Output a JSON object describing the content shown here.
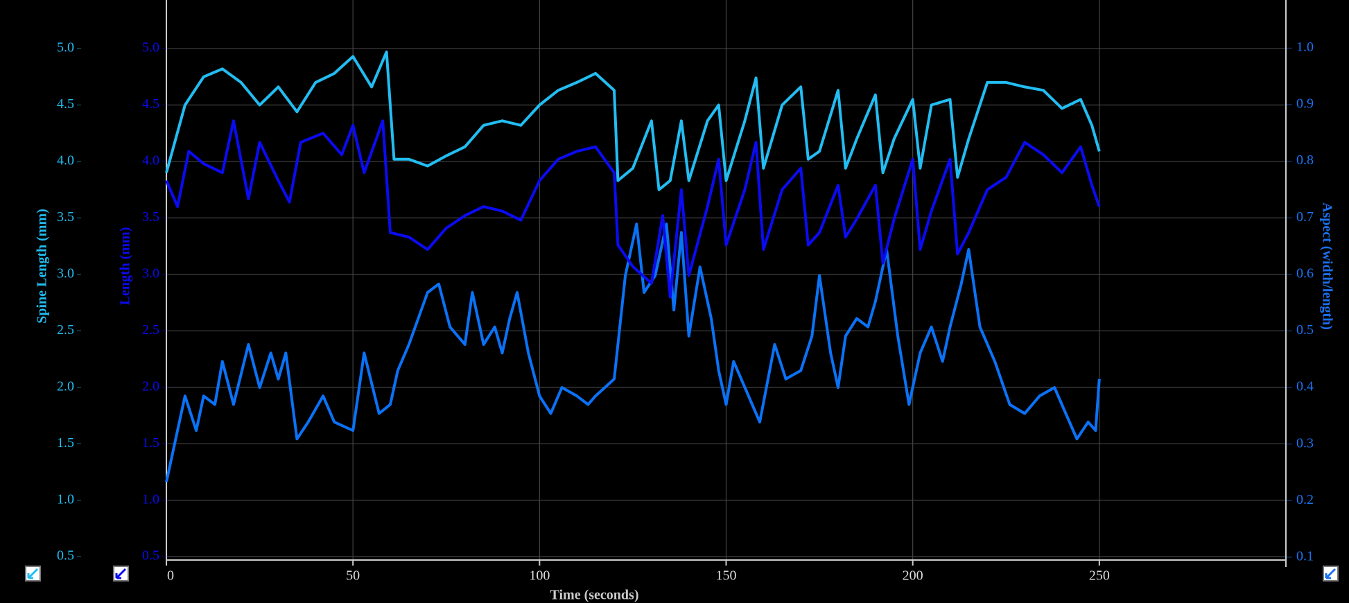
{
  "chart_data": {
    "type": "line",
    "xlabel": "Time (seconds)",
    "xlim": [
      0,
      300
    ],
    "xticks": [
      0,
      50,
      100,
      150,
      200,
      250
    ],
    "ylabel": "Spine Length (mm)",
    "ycolor": "#22bdf2",
    "ylim": [
      0.47,
      5.43
    ],
    "yticks": [
      0.5,
      {
        "value": 1.0,
        "label": "1.0"
      },
      1.5,
      {
        "value": 2.0,
        "label": "2.0"
      },
      2.5,
      {
        "value": 3.0,
        "label": "3.0"
      },
      3.5,
      {
        "value": 4.0,
        "label": "4.0"
      },
      4.5,
      {
        "value": 5.0,
        "label": "5.0"
      }
    ],
    "y3label": "Length (mm)",
    "y3color": "#0b0bf2",
    "y3lim": [
      0.47,
      5.43
    ],
    "y3ticks": [
      0.5,
      {
        "value": 1.0,
        "label": "1.0"
      },
      1.5,
      {
        "value": 2.0,
        "label": "2.0"
      },
      2.5,
      {
        "value": 3.0,
        "label": "3.0"
      },
      3.5,
      {
        "value": 4.0,
        "label": "4.0"
      },
      4.5,
      {
        "value": 5.0,
        "label": "5.0"
      }
    ],
    "y2label": "Aspect (width/length)",
    "y2color": "#1a72f2",
    "y2lim": [
      0.095,
      1.085
    ],
    "y2ticks": [
      0.1,
      0.2,
      0.3,
      0.4,
      0.5,
      0.6,
      0.7,
      0.8,
      0.9,
      {
        "value": 1.0,
        "label": "1.0"
      }
    ],
    "grid": true,
    "series": [
      {
        "axis": "y2",
        "color": "#0a72f7",
        "x": [
          0,
          3,
          5,
          8,
          10,
          13,
          15,
          18,
          22,
          25,
          28,
          30,
          32,
          35,
          38,
          42,
          45,
          50,
          53,
          57,
          60,
          62,
          65,
          70,
          73,
          76,
          80,
          82,
          85,
          88,
          90,
          92,
          94,
          97,
          100,
          103,
          106,
          110,
          113,
          115,
          120,
          123,
          126,
          128,
          131,
          134,
          136,
          138,
          140,
          143,
          146,
          148,
          150,
          152,
          156,
          159,
          163,
          166,
          170,
          173,
          175,
          178,
          180,
          182,
          185,
          188,
          190,
          193,
          196,
          199,
          202,
          205,
          208,
          210,
          213,
          215,
          218,
          222,
          226,
          230,
          234,
          238,
          241,
          244,
          247,
          249,
          250
        ],
        "values": [
          0.233,
          0.324,
          0.385,
          0.324,
          0.385,
          0.37,
          0.446,
          0.37,
          0.476,
          0.4,
          0.461,
          0.415,
          0.461,
          0.309,
          0.339,
          0.385,
          0.339,
          0.324,
          0.461,
          0.354,
          0.37,
          0.43,
          0.476,
          0.568,
          0.583,
          0.507,
          0.476,
          0.568,
          0.476,
          0.507,
          0.461,
          0.522,
          0.568,
          0.461,
          0.385,
          0.354,
          0.4,
          0.385,
          0.37,
          0.385,
          0.415,
          0.598,
          0.689,
          0.568,
          0.598,
          0.689,
          0.537,
          0.674,
          0.491,
          0.613,
          0.522,
          0.43,
          0.37,
          0.446,
          0.385,
          0.339,
          0.476,
          0.415,
          0.43,
          0.491,
          0.598,
          0.461,
          0.4,
          0.491,
          0.522,
          0.507,
          0.552,
          0.644,
          0.491,
          0.37,
          0.461,
          0.507,
          0.446,
          0.507,
          0.583,
          0.644,
          0.507,
          0.446,
          0.37,
          0.354,
          0.385,
          0.4,
          0.354,
          0.309,
          0.339,
          0.324,
          0.415
        ]
      },
      {
        "axis": "y3",
        "color": "#0b0bf2",
        "x": [
          0,
          3,
          6,
          10,
          15,
          18,
          22,
          25,
          30,
          33,
          36,
          42,
          47,
          50,
          53,
          58,
          60,
          65,
          70,
          75,
          80,
          85,
          90,
          95,
          100,
          105,
          110,
          115,
          120,
          121,
          125,
          130,
          133,
          135,
          138,
          140,
          145,
          148,
          150,
          155,
          158,
          160,
          165,
          170,
          172,
          175,
          180,
          182,
          185,
          190,
          192,
          195,
          200,
          202,
          205,
          210,
          212,
          215,
          220,
          225,
          230,
          235,
          240,
          245,
          248,
          250
        ],
        "values": [
          3.83,
          3.6,
          4.09,
          3.98,
          3.9,
          4.36,
          3.67,
          4.17,
          3.83,
          3.64,
          4.17,
          4.25,
          4.06,
          4.32,
          3.9,
          4.36,
          3.37,
          3.33,
          3.22,
          3.41,
          3.52,
          3.6,
          3.56,
          3.48,
          3.83,
          4.02,
          4.09,
          4.13,
          3.9,
          3.26,
          3.07,
          2.92,
          3.52,
          2.8,
          3.75,
          2.99,
          3.6,
          4.02,
          3.26,
          3.75,
          4.17,
          3.22,
          3.75,
          3.94,
          3.26,
          3.37,
          3.79,
          3.33,
          3.49,
          3.79,
          3.1,
          3.49,
          4.02,
          3.22,
          3.56,
          4.02,
          3.18,
          3.37,
          3.75,
          3.86,
          4.17,
          4.06,
          3.9,
          4.13,
          3.79,
          3.6
        ]
      },
      {
        "axis": "y",
        "color": "#22bdf2",
        "x": [
          0,
          5,
          10,
          15,
          20,
          25,
          30,
          35,
          40,
          45,
          50,
          55,
          59,
          61,
          65,
          70,
          75,
          80,
          85,
          90,
          95,
          100,
          105,
          110,
          115,
          120,
          121,
          125,
          130,
          132,
          135,
          138,
          140,
          145,
          148,
          150,
          155,
          158,
          160,
          165,
          170,
          172,
          175,
          180,
          182,
          185,
          190,
          192,
          195,
          200,
          202,
          205,
          210,
          212,
          215,
          220,
          225,
          230,
          235,
          240,
          245,
          248,
          250
        ],
        "values": [
          3.9,
          4.5,
          4.75,
          4.82,
          4.7,
          4.5,
          4.66,
          4.44,
          4.7,
          4.78,
          4.93,
          4.66,
          4.97,
          4.02,
          4.02,
          3.96,
          4.05,
          4.13,
          4.32,
          4.36,
          4.32,
          4.5,
          4.63,
          4.7,
          4.78,
          4.63,
          3.83,
          3.94,
          4.36,
          3.75,
          3.83,
          4.36,
          3.83,
          4.36,
          4.5,
          3.83,
          4.36,
          4.74,
          3.94,
          4.5,
          4.66,
          4.02,
          4.09,
          4.63,
          3.94,
          4.2,
          4.59,
          3.9,
          4.2,
          4.55,
          3.94,
          4.5,
          4.55,
          3.86,
          4.2,
          4.7,
          4.7,
          4.66,
          4.63,
          4.47,
          4.55,
          4.32,
          4.09
        ]
      }
    ]
  }
}
